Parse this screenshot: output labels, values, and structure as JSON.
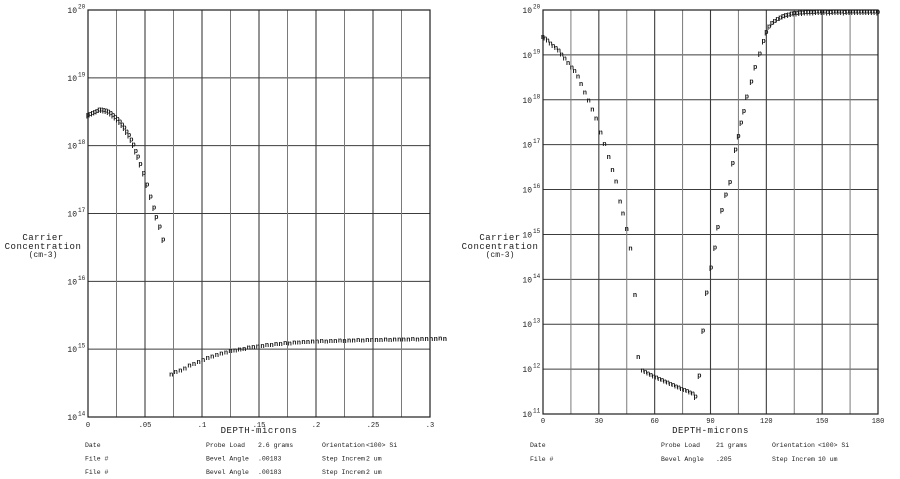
{
  "page": {
    "background": "#ffffff",
    "text_color": "#1c1c1c",
    "grid_color": "#7a7a7a",
    "major_grid_color": "#3c3c3c",
    "border_color": "#1f1f1f"
  },
  "chart_data": [
    {
      "name": "left-srp-profile",
      "type": "scatter",
      "log_y": true,
      "title": "",
      "xlabel": "DEPTH-microns",
      "ylabel_lines": [
        "Carrier",
        "Concentration",
        "(cm-3)"
      ],
      "y_base": "10",
      "x_range": [
        0,
        0.3
      ],
      "x_minor_step": 0.025,
      "y_exponents": [
        20,
        19,
        18,
        17,
        16,
        15,
        14
      ],
      "x_ticks": [
        {
          "v": 0.0,
          "label": "0"
        },
        {
          "v": 0.05,
          "label": ".05"
        },
        {
          "v": 0.1,
          "label": ".1"
        },
        {
          "v": 0.15,
          "label": ".15"
        },
        {
          "v": 0.2,
          "label": ".2"
        },
        {
          "v": 0.25,
          "label": ".25"
        },
        {
          "v": 0.3,
          "label": ".3"
        }
      ],
      "series": [
        {
          "name": "p-type",
          "marker": "p",
          "points": [
            [
              0.0,
              2.9e+18
            ],
            [
              0.002,
              3e+18
            ],
            [
              0.004,
              3.1e+18
            ],
            [
              0.006,
              3.2e+18
            ],
            [
              0.008,
              3.3e+18
            ],
            [
              0.01,
              3.5e+18
            ],
            [
              0.012,
              3.5e+18
            ],
            [
              0.014,
              3.4e+18
            ],
            [
              0.016,
              3.35e+18
            ],
            [
              0.018,
              3.25e+18
            ],
            [
              0.02,
              3.1e+18
            ],
            [
              0.022,
              2.9e+18
            ],
            [
              0.024,
              2.7e+18
            ],
            [
              0.026,
              2.5e+18
            ],
            [
              0.028,
              2.3e+18
            ],
            [
              0.03,
              2.1e+18
            ],
            [
              0.032,
              1.9e+18
            ],
            [
              0.034,
              1.65e+18
            ],
            [
              0.036,
              1.45e+18
            ],
            [
              0.038,
              1.25e+18
            ],
            [
              0.04,
              1.05e+18
            ],
            [
              0.042,
              8.5e+17
            ],
            [
              0.044,
              7e+17
            ],
            [
              0.046,
              5.5e+17
            ],
            [
              0.049,
              4e+17
            ],
            [
              0.052,
              2.7e+17
            ],
            [
              0.055,
              1.8e+17
            ],
            [
              0.058,
              1.25e+17
            ],
            [
              0.06,
              9e+16
            ],
            [
              0.063,
              6.5e+16
            ],
            [
              0.066,
              4.2e+16
            ]
          ]
        },
        {
          "name": "n-type",
          "marker": "n",
          "points": [
            [
              0.073,
              430000000000000.0
            ],
            [
              0.077,
              470000000000000.0
            ],
            [
              0.081,
              490000000000000.0
            ],
            [
              0.085,
              530000000000000.0
            ],
            [
              0.089,
              580000000000000.0
            ],
            [
              0.093,
              610000000000000.0
            ],
            [
              0.097,
              660000000000000.0
            ],
            [
              0.101,
              700000000000000.0
            ],
            [
              0.105,
              750000000000000.0
            ],
            [
              0.109,
              790000000000000.0
            ],
            [
              0.113,
              840000000000000.0
            ],
            [
              0.117,
              880000000000000.0
            ],
            [
              0.121,
              910000000000000.0
            ],
            [
              0.125,
              950000000000000.0
            ],
            [
              0.129,
              970000000000000.0
            ],
            [
              0.133,
              1010000000000000.0
            ],
            [
              0.137,
              1030000000000000.0
            ],
            [
              0.141,
              1070000000000000.0
            ],
            [
              0.145,
              1090000000000000.0
            ],
            [
              0.149,
              1120000000000000.0
            ],
            [
              0.153,
              1140000000000000.0
            ],
            [
              0.157,
              1170000000000000.0
            ],
            [
              0.161,
              1180000000000000.0
            ],
            [
              0.165,
              1210000000000000.0
            ],
            [
              0.169,
              1220000000000000.0
            ],
            [
              0.173,
              1250000000000000.0
            ],
            [
              0.177,
              1240000000000000.0
            ],
            [
              0.181,
              1270000000000000.0
            ],
            [
              0.185,
              1280000000000000.0
            ],
            [
              0.189,
              1300000000000000.0
            ],
            [
              0.193,
              1290000000000000.0
            ],
            [
              0.197,
              1320000000000000.0
            ],
            [
              0.201,
              1310000000000000.0
            ],
            [
              0.205,
              1340000000000000.0
            ],
            [
              0.209,
              1330000000000000.0
            ],
            [
              0.213,
              1350000000000000.0
            ],
            [
              0.217,
              1340000000000000.0
            ],
            [
              0.221,
              1360000000000000.0
            ],
            [
              0.225,
              1350000000000000.0
            ],
            [
              0.229,
              1370000000000000.0
            ],
            [
              0.233,
              1360000000000000.0
            ],
            [
              0.237,
              1380000000000000.0
            ],
            [
              0.241,
              1370000000000000.0
            ],
            [
              0.245,
              1390000000000000.0
            ],
            [
              0.249,
              1380000000000000.0
            ],
            [
              0.253,
              1400000000000000.0
            ],
            [
              0.257,
              1390000000000000.0
            ],
            [
              0.261,
              1410000000000000.0
            ],
            [
              0.265,
              1400000000000000.0
            ],
            [
              0.269,
              1420000000000000.0
            ],
            [
              0.273,
              1410000000000000.0
            ],
            [
              0.277,
              1420000000000000.0
            ],
            [
              0.281,
              1410000000000000.0
            ],
            [
              0.285,
              1430000000000000.0
            ],
            [
              0.289,
              1420000000000000.0
            ],
            [
              0.293,
              1430000000000000.0
            ],
            [
              0.297,
              1440000000000000.0
            ],
            [
              0.301,
              1430000000000000.0
            ],
            [
              0.305,
              1440000000000000.0
            ],
            [
              0.309,
              1450000000000000.0
            ],
            [
              0.313,
              1440000000000000.0
            ]
          ]
        }
      ],
      "footer_rows": [
        {
          "c1": "Date",
          "l2": "Probe Load",
          "v2": "2.6 grams",
          "l3": "Orientation",
          "v3": "<100> Si"
        },
        {
          "c1": "File #",
          "l2": "Bevel Angle",
          "v2": ".00183",
          "l3": "Step Increm",
          "v3": "2 um"
        },
        {
          "c1": "File #",
          "l2": "Bevel Angle",
          "v2": ".00183",
          "l3": "Step Increm",
          "v3": "2 um"
        }
      ]
    },
    {
      "name": "right-srp-profile",
      "type": "scatter",
      "log_y": true,
      "title": "",
      "xlabel": "DEPTH-microns",
      "ylabel_lines": [
        "Carrier",
        "Concentration",
        "(cm-3)"
      ],
      "y_base": "10",
      "x_range": [
        0,
        180
      ],
      "x_minor_step": 15,
      "y_exponents": [
        20,
        19,
        18,
        17,
        16,
        15,
        14,
        13,
        12,
        11
      ],
      "x_ticks": [
        {
          "v": 0,
          "label": "0"
        },
        {
          "v": 30,
          "label": "30"
        },
        {
          "v": 60,
          "label": "60"
        },
        {
          "v": 90,
          "label": "90"
        },
        {
          "v": 120,
          "label": "120"
        },
        {
          "v": 150,
          "label": "150"
        },
        {
          "v": 180,
          "label": "180"
        }
      ],
      "series": [
        {
          "name": "n-type",
          "marker": "n",
          "points": [
            [
              0,
              2.6e+19
            ],
            [
              1.2,
              2.4e+19
            ],
            [
              2.5,
              2.15e+19
            ],
            [
              4,
              1.85e+19
            ],
            [
              5.5,
              1.6e+19
            ],
            [
              7,
              1.45e+19
            ],
            [
              8.5,
              1.3e+19
            ],
            [
              10,
              1.05e+19
            ],
            [
              11.7,
              8.5e+18
            ],
            [
              13.5,
              6.8e+18
            ],
            [
              15.5,
              5.4e+18
            ],
            [
              17,
              4.5e+18
            ],
            [
              18.8,
              3.4e+18
            ],
            [
              20.5,
              2.3e+18
            ],
            [
              22.5,
              1.5e+18
            ],
            [
              24.5,
              1e+18
            ],
            [
              26.5,
              6.3e+17
            ],
            [
              28.5,
              3.9e+17
            ],
            [
              31,
              1.9e+17
            ],
            [
              33,
              1.05e+17
            ],
            [
              35.3,
              5.4e+16
            ],
            [
              37.3,
              2.8e+16
            ],
            [
              39.3,
              1.55e+16
            ],
            [
              41.4,
              5600000000000000.0
            ],
            [
              43,
              3000000000000000.0
            ],
            [
              45,
              1350000000000000.0
            ],
            [
              47,
              500000000000000.0
            ],
            [
              49.4,
              46000000000000.0
            ],
            [
              51.2,
              1900000000000.0
            ],
            [
              53.5,
              950000000000.0
            ],
            [
              55,
              880000000000.0
            ],
            [
              56.5,
              820000000000.0
            ],
            [
              58,
              760000000000.0
            ],
            [
              59.5,
              710000000000.0
            ],
            [
              61,
              660000000000.0
            ],
            [
              62.5,
              620000000000.0
            ],
            [
              64,
              580000000000.0
            ],
            [
              65.5,
              540000000000.0
            ],
            [
              67,
              510000000000.0
            ],
            [
              68.5,
              480000000000.0
            ],
            [
              70,
              450000000000.0
            ],
            [
              71.5,
              420000000000.0
            ],
            [
              73,
              400000000000.0
            ],
            [
              74.5,
              370000000000.0
            ],
            [
              76,
              350000000000.0
            ],
            [
              77.5,
              330000000000.0
            ],
            [
              79,
              310000000000.0
            ],
            [
              80.5,
              290000000000.0
            ]
          ]
        },
        {
          "name": "p-type",
          "marker": "p",
          "points": [
            [
              82,
              250000000000.0
            ],
            [
              84,
              740000000000.0
            ],
            [
              86,
              7400000000000.0
            ],
            [
              88,
              52000000000000.0
            ],
            [
              90.3,
              190000000000000.0
            ],
            [
              92.4,
              520000000000000.0
            ],
            [
              94,
              1500000000000000.0
            ],
            [
              96.2,
              3600000000000000.0
            ],
            [
              98.3,
              8000000000000000.0
            ],
            [
              100.5,
              1.5e+16
            ],
            [
              102,
              4e+16
            ],
            [
              103.5,
              8e+16
            ],
            [
              105,
              1.6e+17
            ],
            [
              106.5,
              3.2e+17
            ],
            [
              108,
              5.8e+17
            ],
            [
              109.5,
              1.2e+18
            ],
            [
              112,
              2.6e+18
            ],
            [
              114,
              5.5e+18
            ],
            [
              116.5,
              1.1e+19
            ],
            [
              118.5,
              2.1e+19
            ],
            [
              120,
              3.3e+19
            ],
            [
              121.5,
              4.4e+19
            ],
            [
              123,
              5.2e+19
            ],
            [
              124.5,
              5.9e+19
            ],
            [
              126,
              6.5e+19
            ],
            [
              127.5,
              7e+19
            ],
            [
              129,
              7.5e+19
            ],
            [
              130.5,
              7.9e+19
            ],
            [
              132,
              8.2e+19
            ],
            [
              133.5,
              8.5e+19
            ],
            [
              135,
              8.7e+19
            ],
            [
              136.5,
              8.9e+19
            ],
            [
              138,
              9e+19
            ],
            [
              139.5,
              9.1e+19
            ],
            [
              141,
              9.2e+19
            ],
            [
              142.5,
              9.2e+19
            ],
            [
              144,
              9.3e+19
            ],
            [
              145.5,
              9.3e+19
            ],
            [
              147,
              9.4e+19
            ],
            [
              148.5,
              9.4e+19
            ],
            [
              150,
              9.5e+19
            ],
            [
              151.5,
              9.4e+19
            ],
            [
              153,
              9.3e+19
            ],
            [
              154.5,
              9.3e+19
            ],
            [
              156,
              9.4e+19
            ],
            [
              157.5,
              9.5e+19
            ],
            [
              159,
              9.5e+19
            ],
            [
              160.5,
              9.4e+19
            ],
            [
              162,
              9.3e+19
            ],
            [
              163.5,
              9.4e+19
            ],
            [
              165,
              9.5e+19
            ],
            [
              166.5,
              9.5e+19
            ],
            [
              168,
              9.4e+19
            ],
            [
              169.5,
              9.4e+19
            ],
            [
              171,
              9.5e+19
            ],
            [
              172.5,
              9.5e+19
            ],
            [
              174,
              9.4e+19
            ],
            [
              175.5,
              9.5e+19
            ],
            [
              177,
              9.5e+19
            ],
            [
              178.5,
              9.4e+19
            ],
            [
              180,
              9.3e+19
            ]
          ]
        }
      ],
      "footer_rows": [
        {
          "c1": "Date",
          "l2": "Probe Load",
          "v2": "21 grams",
          "l3": "Orientation",
          "v3": "<100> Si"
        },
        {
          "c1": "File #",
          "l2": "Bevel Angle",
          "v2": ".205",
          "l3": "Step Increm",
          "v3": "10 um"
        }
      ]
    }
  ]
}
